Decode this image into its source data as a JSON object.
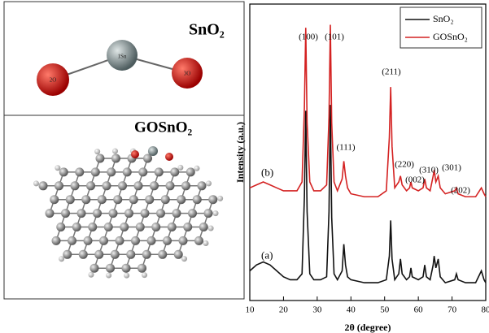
{
  "panels": {
    "molecule_1": {
      "title": "SnO₂",
      "atoms": [
        "1Sn",
        "2O",
        "3O"
      ]
    },
    "molecule_2": {
      "title": "GOSnO₂"
    }
  },
  "chart_data": {
    "type": "line",
    "xlabel": "2θ (degree)",
    "ylabel": "Intensity (a.u.)",
    "xlim": [
      10,
      80
    ],
    "xticks": [
      10,
      20,
      30,
      40,
      50,
      60,
      70,
      80
    ],
    "ylim": [
      0,
      100
    ],
    "x": [
      10,
      12,
      14,
      16,
      18,
      20,
      22,
      24,
      25.5,
      26.2,
      26.6,
      27,
      27.8,
      29,
      31,
      32.8,
      33.5,
      33.9,
      34.3,
      35,
      36,
      37.4,
      37.9,
      38.4,
      39,
      40,
      44,
      48,
      50.5,
      51.4,
      51.8,
      52.2,
      53,
      54.2,
      54.7,
      55.2,
      56.5,
      57.4,
      57.8,
      58.2,
      60,
      61.4,
      61.9,
      62.4,
      63.5,
      64.4,
      64.7,
      65.2,
      65.9,
      66.5,
      68,
      70.8,
      71.3,
      71.8,
      74,
      77,
      78.7,
      79.5,
      80
    ],
    "series": [
      {
        "name": "SnO₂",
        "label": "(a)",
        "color": "#111111",
        "values": [
          10,
          12,
          13,
          12,
          10,
          8,
          7,
          7,
          9,
          35,
          64,
          30,
          9,
          7,
          7,
          8,
          30,
          66,
          28,
          9,
          7,
          10,
          19,
          12,
          8,
          7,
          6,
          6,
          7,
          15,
          27,
          14,
          7,
          9,
          14,
          9,
          7,
          8,
          11,
          8,
          7,
          8,
          12,
          8,
          7,
          12,
          15,
          11,
          14,
          8,
          6,
          7,
          9,
          7,
          6,
          6,
          10,
          7,
          6
        ]
      },
      {
        "name": "GOSnO₂",
        "label": "(b)",
        "color": "#d42222",
        "values": [
          38,
          39,
          40,
          39,
          38,
          37,
          37,
          37,
          40,
          65,
          92,
          60,
          40,
          37,
          37,
          39,
          62,
          93,
          60,
          40,
          37,
          41,
          47,
          42,
          38,
          36,
          35,
          35,
          37,
          55,
          72,
          52,
          38,
          40,
          42,
          39,
          37,
          38,
          40,
          38,
          37,
          38,
          41,
          38,
          37,
          42,
          44,
          40,
          42,
          38,
          36,
          37,
          38,
          36,
          35,
          35,
          38,
          36,
          35
        ]
      }
    ],
    "annotations": [
      "(100)",
      "(101)",
      "(111)",
      "(211)",
      "(220)",
      "(002)",
      "(310)",
      "(301)",
      "(202)"
    ],
    "legend": "top-right"
  }
}
